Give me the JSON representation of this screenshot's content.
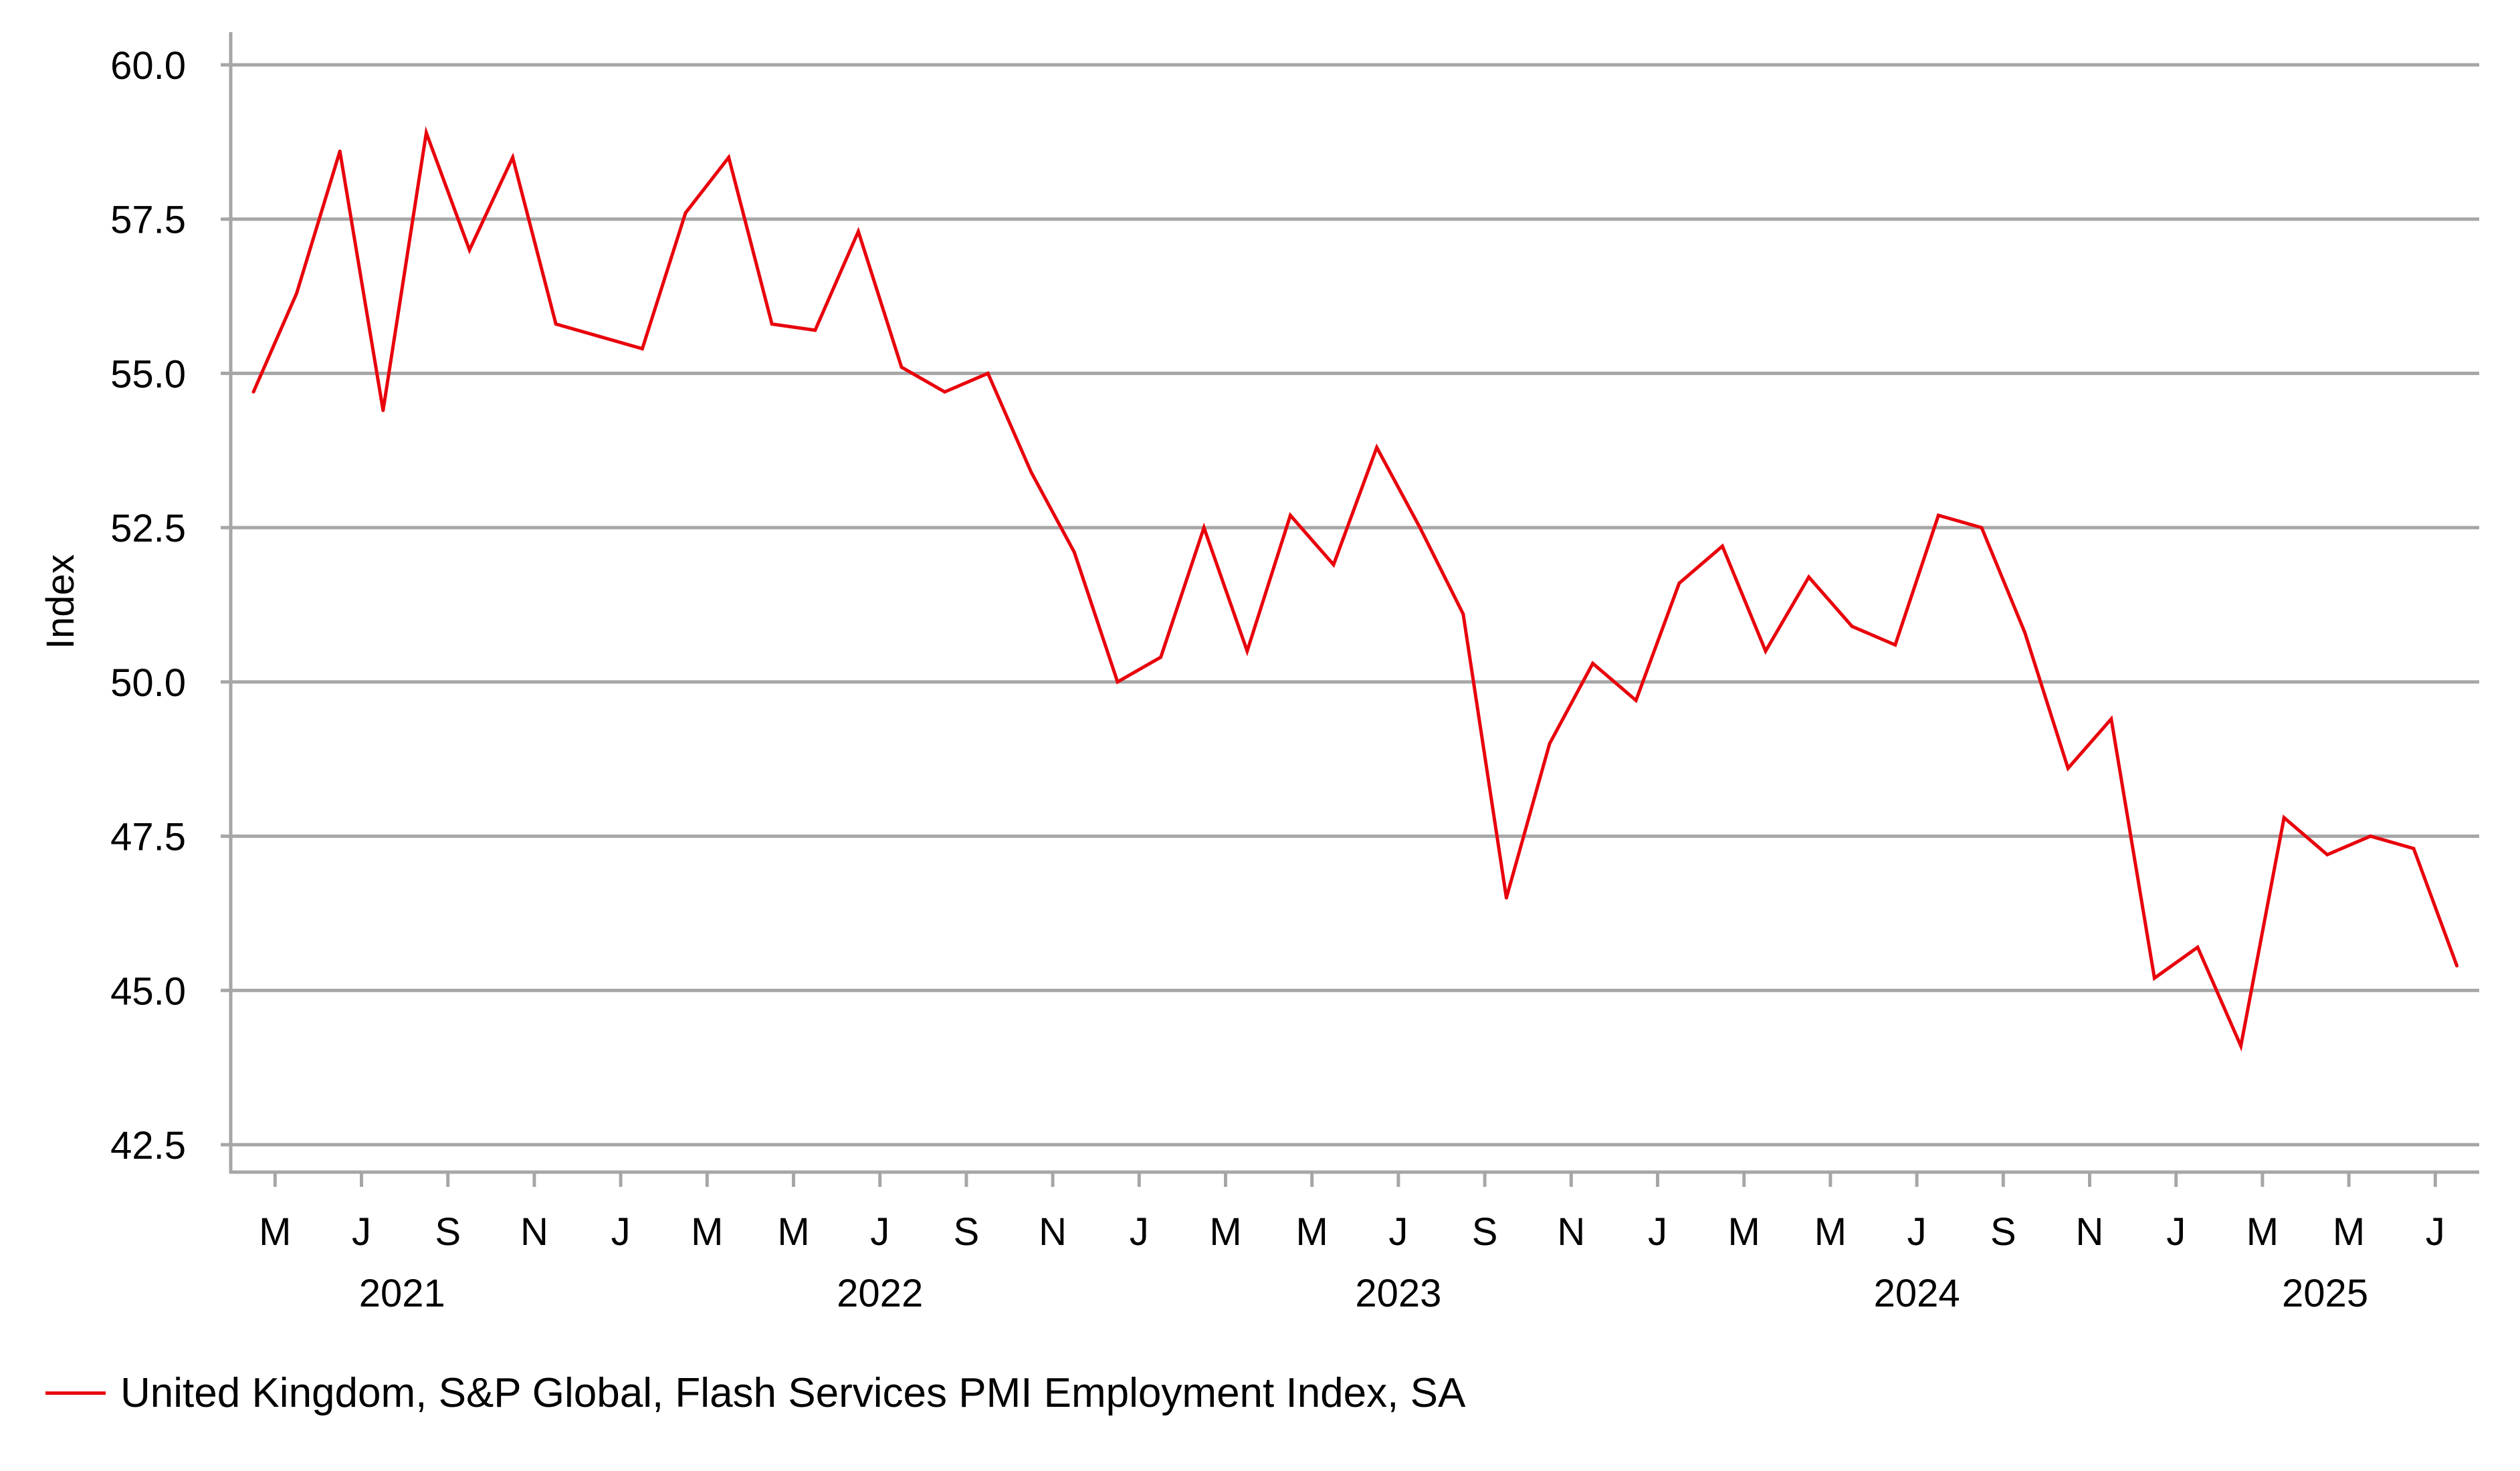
{
  "chart_data": {
    "type": "line",
    "title": "",
    "xlabel": "",
    "ylabel": "Index",
    "ylim": [
      42.5,
      60.0
    ],
    "yticks": [
      "42.5",
      "45.0",
      "47.5",
      "50.0",
      "52.5",
      "55.0",
      "57.5",
      "60.0"
    ],
    "grid": true,
    "legend_position": "bottom-left",
    "x_start": "2021-04",
    "x_end": "2025-07",
    "x_tick_labels": [
      "M",
      "J",
      "S",
      "N",
      "J",
      "M",
      "M",
      "J",
      "S",
      "N",
      "J",
      "M",
      "M",
      "J",
      "S",
      "N",
      "J",
      "M",
      "M",
      "J",
      "S",
      "N",
      "J",
      "M",
      "M",
      "J"
    ],
    "year_labels": [
      "2021",
      "2022",
      "2023",
      "2024",
      "2025"
    ],
    "series": [
      {
        "name": "United Kingdom, S&P Global, Flash Services PMI Employment Index, SA",
        "color": "#e8000b",
        "values": [
          54.7,
          56.3,
          58.6,
          54.4,
          58.9,
          57.0,
          58.5,
          55.8,
          55.6,
          55.4,
          57.6,
          58.5,
          55.8,
          55.7,
          57.3,
          55.1,
          54.7,
          55.0,
          53.4,
          52.1,
          50.0,
          50.4,
          52.5,
          50.5,
          52.7,
          51.9,
          53.8,
          52.5,
          51.1,
          46.5,
          49.0,
          50.3,
          49.7,
          51.6,
          52.2,
          50.5,
          51.7,
          50.9,
          50.6,
          52.7,
          52.5,
          50.8,
          48.6,
          49.4,
          45.2,
          45.7,
          44.1,
          47.8,
          47.2,
          47.5,
          47.3,
          45.4
        ]
      }
    ]
  }
}
